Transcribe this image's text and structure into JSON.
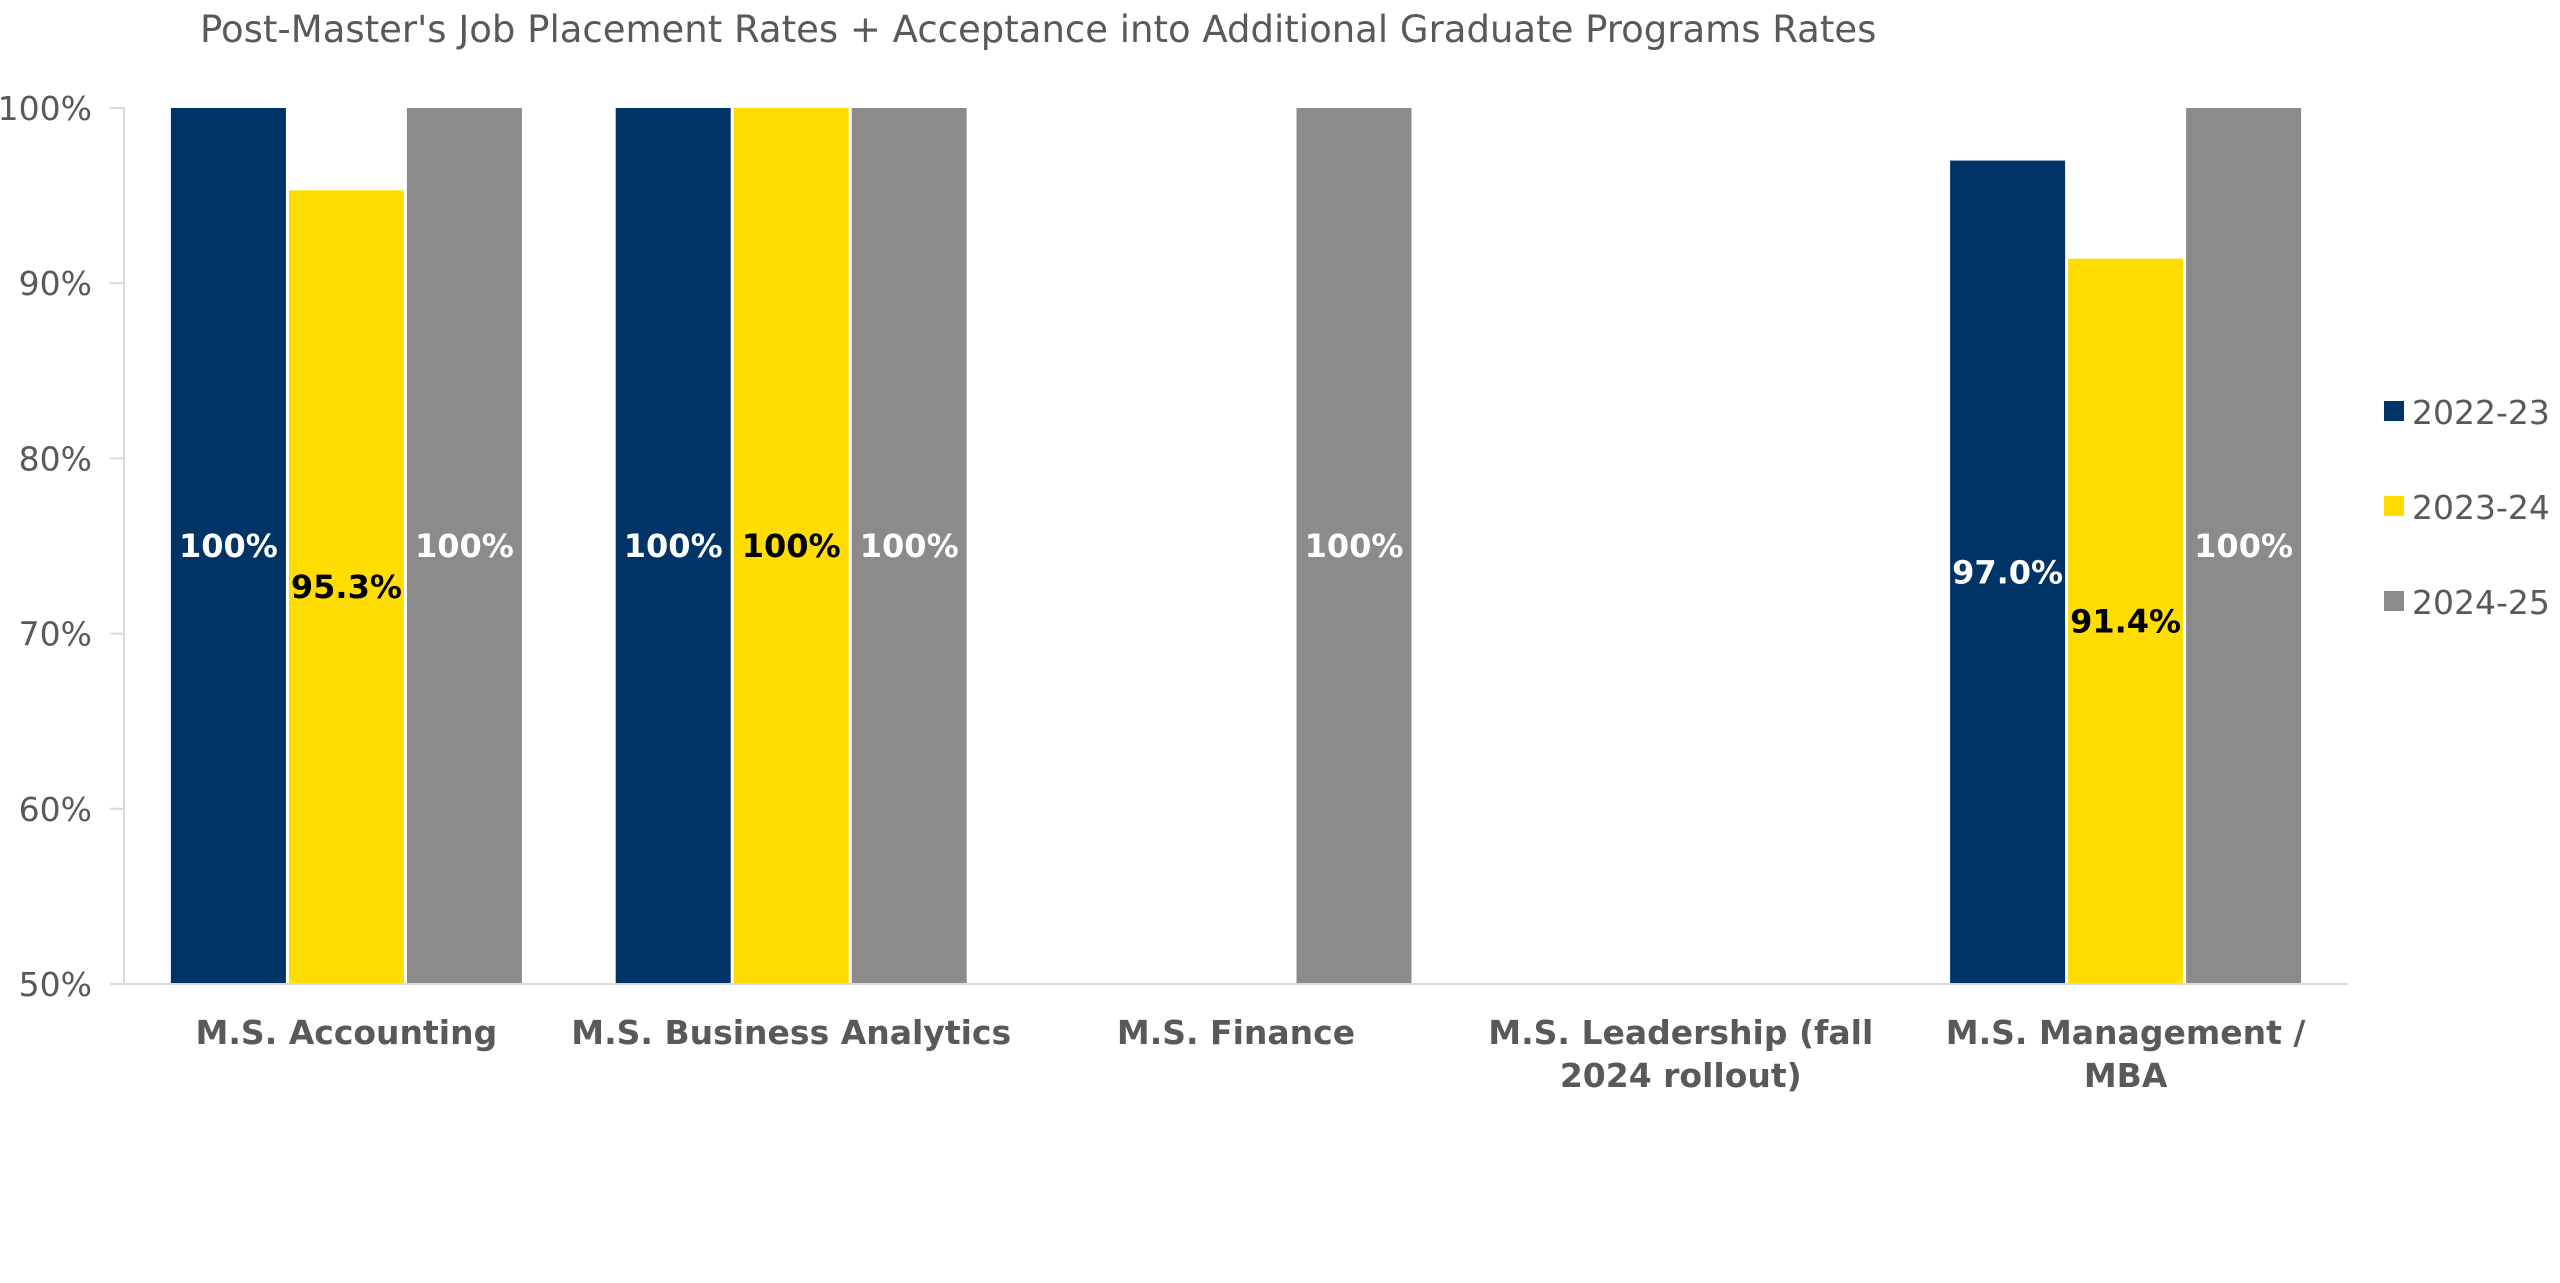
{
  "chart_data": {
    "type": "bar",
    "title": "Post-Master's Job Placement Rates + Acceptance into Additional Graduate Programs Rates",
    "categories": [
      [
        "M.S. Accounting"
      ],
      [
        "M.S. Business Analytics"
      ],
      [
        "M.S. Finance"
      ],
      [
        "M.S. Leadership (fall",
        "2024 rollout)"
      ],
      [
        "M.S. Management /",
        "MBA"
      ]
    ],
    "series": [
      {
        "name": "2022-23",
        "color": "#003366",
        "label_color": "#ffffff",
        "values": [
          100,
          100,
          null,
          null,
          97.0
        ],
        "labels": [
          "100%",
          "100%",
          null,
          null,
          "97.0%"
        ]
      },
      {
        "name": "2023-24",
        "color": "#ffdd00",
        "label_color": "#000000",
        "values": [
          95.3,
          100,
          null,
          null,
          91.4
        ],
        "labels": [
          "95.3%",
          "100%",
          null,
          null,
          "91.4%"
        ]
      },
      {
        "name": "2024-25",
        "color": "#8c8b89",
        "label_color": "#ffffff",
        "values": [
          100,
          100,
          100,
          null,
          100
        ],
        "labels": [
          "100%",
          "100%",
          "100%",
          null,
          "100%"
        ]
      }
    ],
    "ylim": [
      50,
      100
    ],
    "yticks": [
      50,
      60,
      70,
      80,
      90,
      100
    ],
    "ytick_labels": [
      "50%",
      "60%",
      "70%",
      "80%",
      "90%",
      "100%"
    ],
    "grid": false,
    "legend_position": "right"
  }
}
